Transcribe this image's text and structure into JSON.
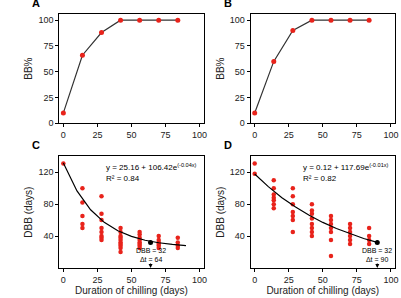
{
  "chart_data": [
    {
      "type": "line",
      "title": "A",
      "ylabel": "BB%",
      "xlim": [
        -3,
        103
      ],
      "xticks": [
        0,
        25,
        50,
        75,
        100
      ],
      "ylim": [
        0,
        106
      ],
      "yticks": [
        0,
        25,
        50,
        75,
        100
      ],
      "grid": false,
      "series": [
        {
          "type": "line",
          "color": "#333333",
          "marker": "circle",
          "colors": [
            "#e8231b",
            "#e8231b",
            "#e8231b",
            "#e8231b",
            "#e8231b",
            "#e8231b",
            "#e8231b"
          ],
          "x": [
            0,
            14,
            28,
            42,
            56,
            70,
            84
          ],
          "values": [
            10,
            66,
            88,
            100,
            100,
            100,
            100
          ]
        }
      ]
    },
    {
      "type": "line",
      "title": "B",
      "ylabel": "BB%",
      "xlim": [
        -3,
        103
      ],
      "xticks": [
        0,
        25,
        50,
        75,
        100
      ],
      "ylim": [
        0,
        106
      ],
      "yticks": [
        0,
        25,
        50,
        75,
        100
      ],
      "grid": false,
      "series": [
        {
          "type": "line",
          "color": "#333333",
          "marker": "circle",
          "colors": [
            "#e8231b",
            "#e8231b",
            "#e8231b",
            "#e8231b",
            "#e8231b",
            "#e8231b",
            "#e8231b"
          ],
          "x": [
            0,
            14,
            28,
            42,
            56,
            70,
            84
          ],
          "values": [
            10,
            60,
            90,
            100,
            100,
            100,
            100
          ]
        }
      ]
    },
    {
      "type": "scatter",
      "title": "C",
      "xlabel": "Duration of chilling (days)",
      "ylabel": "DBB (days)",
      "xlim": [
        -3,
        103
      ],
      "xticks": [
        0,
        25,
        50,
        75,
        100
      ],
      "ylim": [
        0,
        140
      ],
      "yticks": [
        40,
        80,
        120
      ],
      "grid": false,
      "series": [
        {
          "type": "scatter",
          "color": "#e8231b",
          "marker": "circle",
          "x": [
            0,
            14,
            14,
            14,
            14,
            14,
            28,
            28,
            28,
            28,
            28,
            28,
            28,
            28,
            42,
            42,
            42,
            42,
            42,
            42,
            42,
            42,
            42,
            42,
            56,
            56,
            56,
            56,
            56,
            56,
            56,
            56,
            70,
            70,
            70,
            70,
            70,
            70,
            84,
            84,
            84,
            84
          ],
          "values": [
            131,
            100,
            82,
            65,
            55,
            50,
            90,
            68,
            60,
            50,
            45,
            40,
            38,
            35,
            50,
            45,
            40,
            38,
            35,
            32,
            30,
            28,
            25,
            20,
            45,
            42,
            38,
            35,
            32,
            30,
            28,
            25,
            40,
            35,
            32,
            30,
            28,
            25,
            38,
            32,
            28,
            25
          ]
        },
        {
          "type": "line",
          "color": "#000000",
          "line_style": "solid",
          "x": [
            0,
            10,
            20,
            30,
            40,
            50,
            60,
            70,
            80,
            90
          ],
          "values": [
            131.6,
            96.5,
            72.9,
            57.2,
            46.6,
            39.6,
            34.8,
            31.6,
            29.5,
            28.1
          ]
        }
      ],
      "equation": "y = 25.16 + 106.42e",
      "exponent": "(-0.04x)",
      "r2_text": "R² = 0.84",
      "marker_point": {
        "x": 64,
        "y": 32,
        "color": "#000000",
        "label_lines": [
          "DBB = 32",
          "Δt = 64"
        ]
      }
    },
    {
      "type": "scatter",
      "title": "D",
      "xlabel": "Duration of chilling (days)",
      "ylabel": "DBB (days)",
      "xlim": [
        -3,
        103
      ],
      "xticks": [
        0,
        25,
        50,
        75,
        100
      ],
      "ylim": [
        0,
        140
      ],
      "yticks": [
        40,
        80,
        120
      ],
      "grid": false,
      "series": [
        {
          "type": "scatter",
          "color": "#e8231b",
          "marker": "circle",
          "x": [
            0,
            0,
            14,
            14,
            14,
            14,
            14,
            14,
            14,
            28,
            28,
            28,
            28,
            28,
            28,
            28,
            42,
            42,
            42,
            42,
            42,
            42,
            42,
            42,
            56,
            56,
            56,
            56,
            56,
            56,
            56,
            70,
            70,
            70,
            70,
            70,
            70,
            84,
            84,
            84,
            84
          ],
          "values": [
            131,
            118,
            110,
            100,
            92,
            88,
            85,
            80,
            75,
            100,
            90,
            80,
            70,
            65,
            60,
            45,
            80,
            72,
            68,
            62,
            55,
            50,
            45,
            40,
            65,
            60,
            55,
            50,
            45,
            35,
            15,
            55,
            50,
            45,
            40,
            35,
            30,
            50,
            40,
            35,
            30
          ]
        },
        {
          "type": "line",
          "color": "#000000",
          "line_style": "solid",
          "x": [
            0,
            10,
            20,
            30,
            40,
            50,
            60,
            70,
            80,
            90
          ],
          "values": [
            117.8,
            101.9,
            88.1,
            76.3,
            66.0,
            57.1,
            49.4,
            42.7,
            37.0,
            32.0
          ]
        }
      ],
      "equation": "y = 0.12 + 117.69e",
      "exponent": "(-0.01x)",
      "r2_text": "R² = 0.82",
      "marker_point": {
        "x": 90,
        "y": 32,
        "color": "#000000",
        "label_lines": [
          "DBB = 32",
          "Δt = 90"
        ]
      }
    }
  ]
}
